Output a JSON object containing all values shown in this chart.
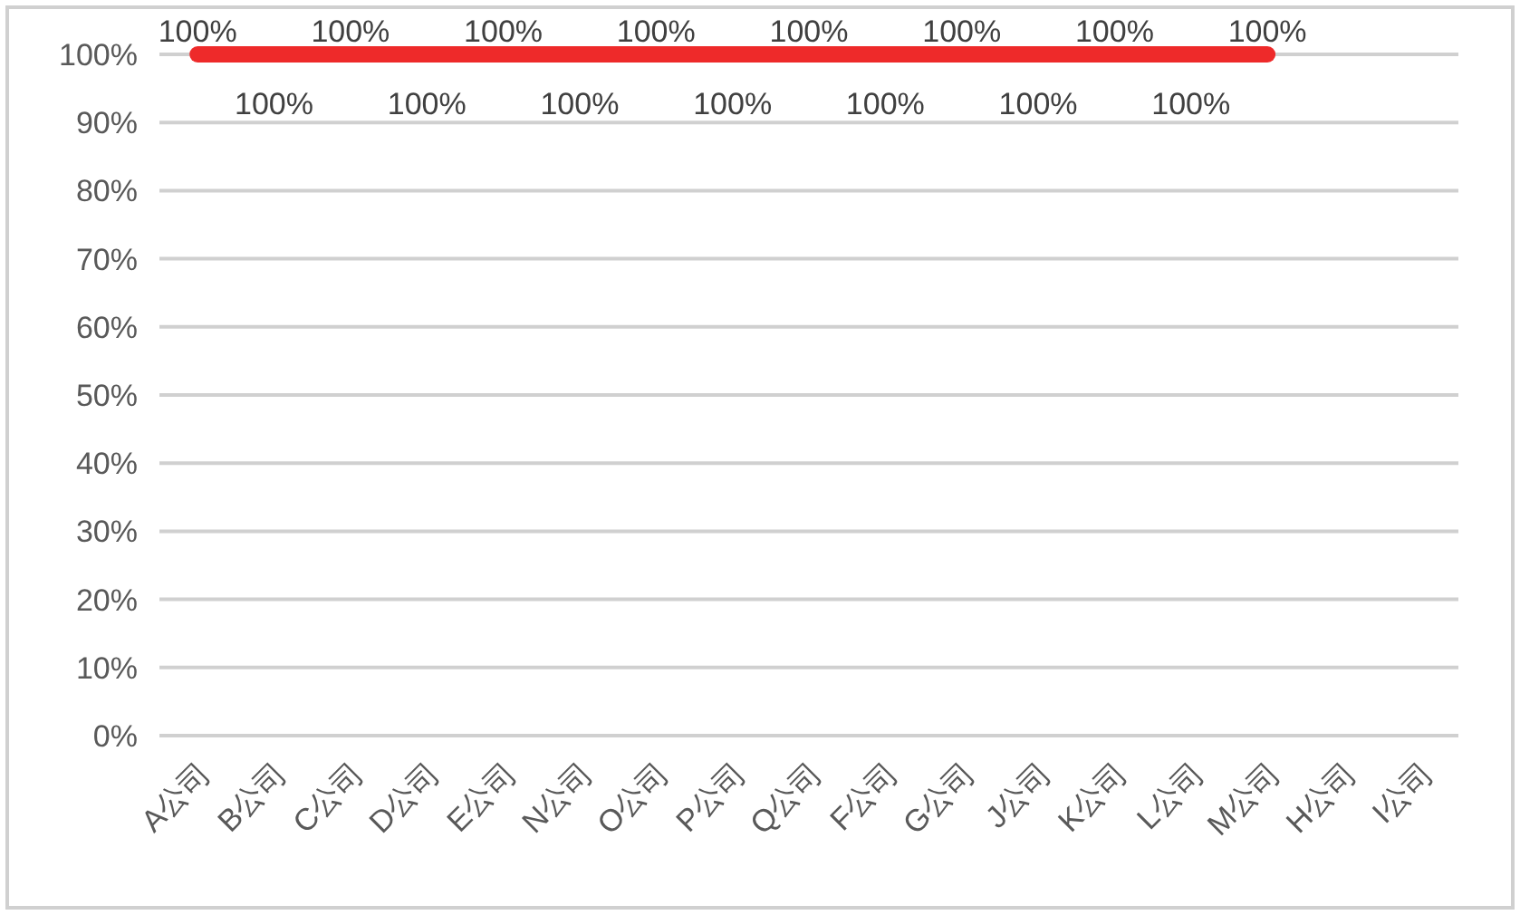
{
  "chart_data": {
    "type": "line",
    "categories": [
      "A公司",
      "B公司",
      "C公司",
      "D公司",
      "E公司",
      "N公司",
      "O公司",
      "P公司",
      "Q公司",
      "F公司",
      "G公司",
      "J公司",
      "K公司",
      "L公司",
      "M公司",
      "H公司",
      "I公司"
    ],
    "series": [
      {
        "color": "#ee2a2a",
        "values": [
          100,
          100,
          100,
          100,
          100,
          100,
          100,
          100,
          100,
          100,
          100,
          100,
          100,
          100,
          100,
          null,
          null
        ]
      }
    ],
    "value_labels": [
      "100%",
      "100%",
      "100%",
      "100%",
      "100%",
      "100%",
      "100%",
      "100%",
      "100%",
      "100%",
      "100%",
      "100%",
      "100%",
      "100%",
      "100%",
      null,
      null
    ],
    "ylim": [
      0,
      100
    ],
    "yticks": [
      {
        "value": 0,
        "label": "0%"
      },
      {
        "value": 10,
        "label": "10%"
      },
      {
        "value": 20,
        "label": "20%"
      },
      {
        "value": 30,
        "label": "30%"
      },
      {
        "value": 40,
        "label": "40%"
      },
      {
        "value": 50,
        "label": "50%"
      },
      {
        "value": 60,
        "label": "60%"
      },
      {
        "value": 70,
        "label": "70%"
      },
      {
        "value": 80,
        "label": "80%"
      },
      {
        "value": 90,
        "label": "90%"
      },
      {
        "value": 100,
        "label": "100%"
      }
    ],
    "grid": "y",
    "marker": "none",
    "line_style": "solid"
  }
}
